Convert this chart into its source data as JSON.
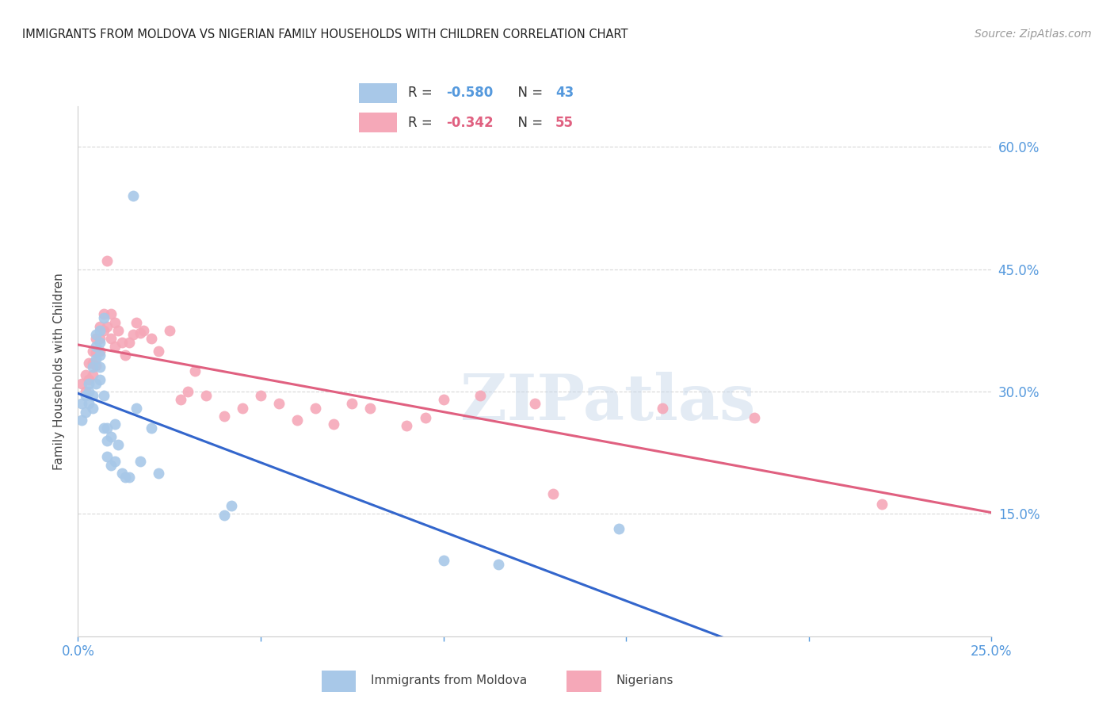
{
  "title": "IMMIGRANTS FROM MOLDOVA VS NIGERIAN FAMILY HOUSEHOLDS WITH CHILDREN CORRELATION CHART",
  "source": "Source: ZipAtlas.com",
  "ylabel": "Family Households with Children",
  "xlim": [
    0.0,
    0.25
  ],
  "ylim": [
    0.0,
    0.65
  ],
  "xticks": [
    0.0,
    0.05,
    0.1,
    0.15,
    0.2,
    0.25
  ],
  "yticks": [
    0.15,
    0.3,
    0.45,
    0.6
  ],
  "ytick_labels": [
    "15.0%",
    "30.0%",
    "45.0%",
    "60.0%"
  ],
  "xtick_labels": [
    "0.0%",
    "",
    "",
    "",
    "",
    "25.0%"
  ],
  "moldova_color": "#a8c8e8",
  "nigerian_color": "#f5a8b8",
  "moldova_line_color": "#3366cc",
  "nigerian_line_color": "#e06080",
  "watermark": "ZIPatlas",
  "moldova_R": "-0.580",
  "moldova_N": "43",
  "nigerian_R": "-0.342",
  "nigerian_N": "55",
  "moldova_x": [
    0.001,
    0.001,
    0.002,
    0.002,
    0.003,
    0.003,
    0.003,
    0.004,
    0.004,
    0.004,
    0.005,
    0.005,
    0.005,
    0.005,
    0.006,
    0.006,
    0.006,
    0.006,
    0.006,
    0.007,
    0.007,
    0.007,
    0.008,
    0.008,
    0.008,
    0.009,
    0.009,
    0.01,
    0.01,
    0.011,
    0.012,
    0.013,
    0.014,
    0.015,
    0.016,
    0.017,
    0.02,
    0.022,
    0.04,
    0.042,
    0.1,
    0.115,
    0.148
  ],
  "moldova_y": [
    0.285,
    0.265,
    0.295,
    0.275,
    0.31,
    0.3,
    0.285,
    0.33,
    0.295,
    0.28,
    0.37,
    0.355,
    0.34,
    0.31,
    0.375,
    0.36,
    0.345,
    0.33,
    0.315,
    0.39,
    0.295,
    0.255,
    0.255,
    0.24,
    0.22,
    0.245,
    0.21,
    0.26,
    0.215,
    0.235,
    0.2,
    0.195,
    0.195,
    0.54,
    0.28,
    0.215,
    0.255,
    0.2,
    0.148,
    0.16,
    0.093,
    0.088,
    0.132
  ],
  "nigerian_x": [
    0.001,
    0.002,
    0.002,
    0.003,
    0.003,
    0.004,
    0.004,
    0.004,
    0.005,
    0.005,
    0.005,
    0.006,
    0.006,
    0.006,
    0.007,
    0.007,
    0.008,
    0.008,
    0.009,
    0.009,
    0.01,
    0.01,
    0.011,
    0.012,
    0.013,
    0.014,
    0.015,
    0.016,
    0.017,
    0.018,
    0.02,
    0.022,
    0.025,
    0.028,
    0.03,
    0.032,
    0.035,
    0.04,
    0.045,
    0.05,
    0.055,
    0.06,
    0.065,
    0.07,
    0.075,
    0.08,
    0.09,
    0.095,
    0.1,
    0.11,
    0.125,
    0.13,
    0.16,
    0.185,
    0.22
  ],
  "nigerian_y": [
    0.31,
    0.32,
    0.3,
    0.335,
    0.315,
    0.35,
    0.335,
    0.32,
    0.365,
    0.348,
    0.332,
    0.38,
    0.365,
    0.35,
    0.395,
    0.375,
    0.46,
    0.38,
    0.395,
    0.365,
    0.385,
    0.355,
    0.375,
    0.36,
    0.345,
    0.36,
    0.37,
    0.385,
    0.372,
    0.375,
    0.365,
    0.35,
    0.375,
    0.29,
    0.3,
    0.325,
    0.295,
    0.27,
    0.28,
    0.295,
    0.285,
    0.265,
    0.28,
    0.26,
    0.285,
    0.28,
    0.258,
    0.268,
    0.29,
    0.295,
    0.285,
    0.175,
    0.28,
    0.268,
    0.162
  ]
}
